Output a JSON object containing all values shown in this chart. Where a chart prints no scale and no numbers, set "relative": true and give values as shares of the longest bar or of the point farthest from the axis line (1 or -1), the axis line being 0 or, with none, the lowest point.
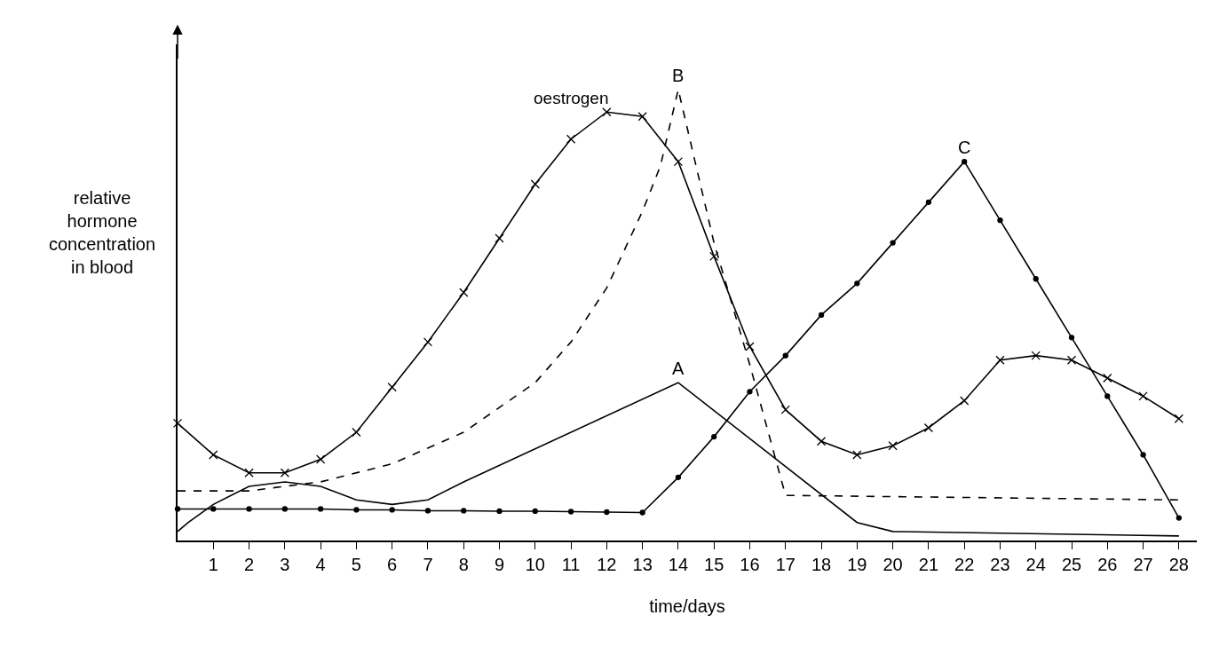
{
  "chart_data": {
    "type": "line",
    "relative": true,
    "xlabel": "time/days",
    "ylabel": "relative hormone concentration in blood",
    "xlim": [
      0,
      28.5
    ],
    "xticks": [
      1,
      2,
      3,
      4,
      5,
      6,
      7,
      8,
      9,
      10,
      11,
      12,
      13,
      14,
      15,
      16,
      17,
      18,
      19,
      20,
      21,
      22,
      23,
      24,
      25,
      26,
      27,
      28
    ],
    "legend": false,
    "series": [
      {
        "name": "oestrogen",
        "color": "#000000",
        "marker": "cross",
        "line_style": "solid",
        "x": [
          0,
          1,
          2,
          3,
          4,
          5,
          6,
          7,
          8,
          9,
          10,
          11,
          12,
          13,
          14,
          15,
          16,
          17,
          18,
          19,
          20,
          21,
          22,
          23,
          24,
          25,
          26,
          27,
          28
        ],
        "values": [
          0.26,
          0.19,
          0.15,
          0.15,
          0.18,
          0.24,
          0.34,
          0.44,
          0.55,
          0.67,
          0.79,
          0.89,
          0.95,
          0.94,
          0.84,
          0.63,
          0.43,
          0.29,
          0.22,
          0.19,
          0.21,
          0.25,
          0.31,
          0.4,
          0.41,
          0.4,
          0.36,
          0.32,
          0.27
        ]
      },
      {
        "name": "A",
        "color": "#000000",
        "marker": "none",
        "line_style": "solid",
        "x": [
          0,
          0.3,
          1,
          2,
          3,
          4,
          5,
          6,
          7,
          8,
          14,
          19,
          20,
          28
        ],
        "values": [
          0.02,
          0.04,
          0.08,
          0.12,
          0.13,
          0.12,
          0.09,
          0.08,
          0.09,
          0.13,
          0.35,
          0.04,
          0.02,
          0.01
        ]
      },
      {
        "name": "B",
        "color": "#000000",
        "marker": "none",
        "line_style": "dashed",
        "x": [
          0,
          2,
          4,
          6,
          8,
          10,
          11,
          12,
          13,
          13.5,
          14,
          15,
          16,
          17,
          28
        ],
        "values": [
          0.11,
          0.11,
          0.13,
          0.17,
          0.24,
          0.35,
          0.44,
          0.56,
          0.73,
          0.83,
          1.0,
          0.66,
          0.39,
          0.1,
          0.09
        ]
      },
      {
        "name": "C",
        "color": "#000000",
        "marker": "circle",
        "line_style": "solid",
        "x": [
          0,
          1,
          2,
          3,
          4,
          5,
          6,
          7,
          8,
          9,
          10,
          11,
          12,
          13,
          14,
          15,
          16,
          17,
          18,
          19,
          20,
          21,
          22,
          23,
          24,
          25,
          26,
          27,
          28
        ],
        "values": [
          0.07,
          0.07,
          0.07,
          0.07,
          0.07,
          0.068,
          0.068,
          0.066,
          0.066,
          0.065,
          0.065,
          0.064,
          0.063,
          0.062,
          0.14,
          0.23,
          0.33,
          0.41,
          0.5,
          0.57,
          0.66,
          0.75,
          0.84,
          0.71,
          0.58,
          0.45,
          0.32,
          0.19,
          0.05
        ]
      }
    ]
  }
}
